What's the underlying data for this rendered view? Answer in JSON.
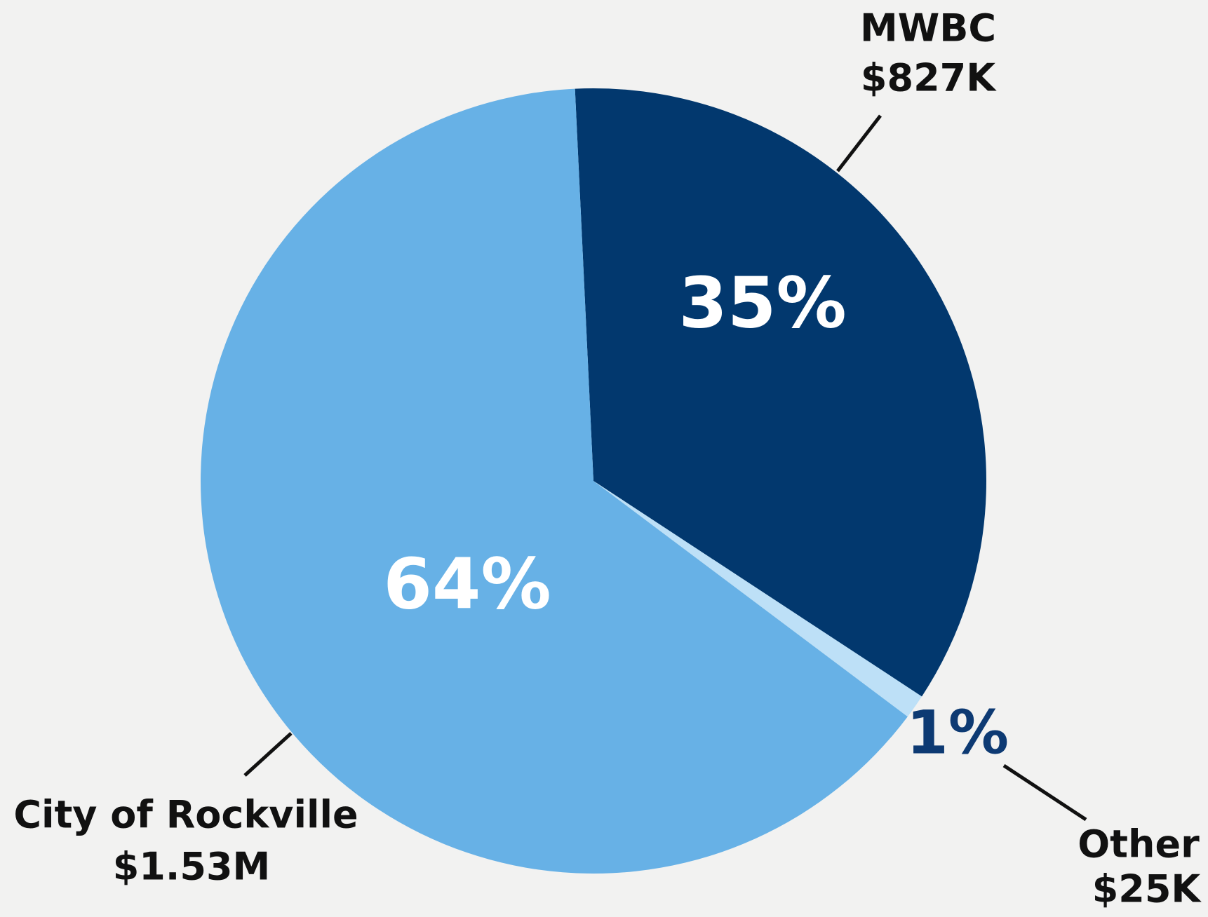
{
  "chart_data": {
    "type": "pie",
    "categories": [
      "MWBC",
      "Other",
      "City of Rockville"
    ],
    "amount_labels": [
      "$827K",
      "$25K",
      "$1.53M"
    ],
    "values": [
      35,
      1,
      64
    ],
    "value_labels": [
      "35%",
      "1%",
      "64%"
    ],
    "colors": [
      "#02386e",
      "#bde0f7",
      "#67b1e6"
    ]
  }
}
